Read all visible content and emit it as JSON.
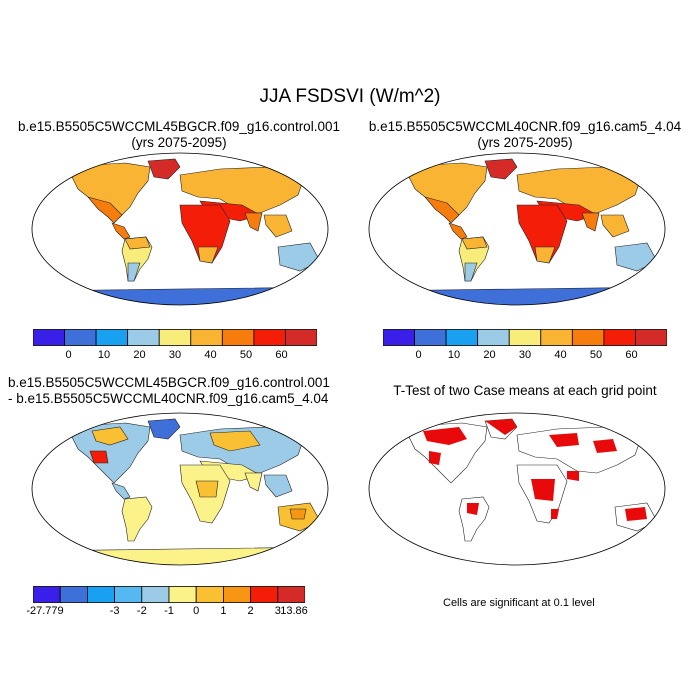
{
  "title": "JJA FSDSVI (W/m^2)",
  "panels": [
    {
      "title_line1": "b.e15.B5505C5WCCML45BGCR.f09_g16.control.001",
      "title_line2": "(yrs 2075-2095)"
    },
    {
      "title_line1": "b.e15.B5505C5WCCML40CNR.f09_g16.cam5_4.04",
      "title_line2": "(yrs 2075-2095)"
    },
    {
      "title_line1": "b.e15.B5505C5WCCML45BGCR.f09_g16.control.001",
      "title_line2": "- b.e15.B5505C5WCCML40CNR.f09_g16.cam5_4.04"
    },
    {
      "title_line1": "T-Test of two Case means at each grid point"
    }
  ],
  "colorbar_abs": {
    "colors": [
      "#3a1fe8",
      "#3f6fd8",
      "#1aa0f0",
      "#9ccbe8",
      "#f8ec7a",
      "#f8b432",
      "#f57c0d",
      "#f41d08",
      "#d42a28"
    ],
    "labels": [
      "0",
      "10",
      "20",
      "30",
      "40",
      "50",
      "60"
    ]
  },
  "colorbar_diff": {
    "colors": [
      "#3a1fe8",
      "#3f6fd8",
      "#1aa0f0",
      "#56b8f0",
      "#9ccbe8",
      "#fbf38a",
      "#f8c032",
      "#f79614",
      "#f41d08",
      "#d42a28"
    ],
    "labels": [
      "-27.779",
      "-3",
      "-2",
      "-1",
      "0",
      "1",
      "2",
      "3",
      "13.86"
    ]
  },
  "footnote": "Cells are significant at 0.1 level"
}
